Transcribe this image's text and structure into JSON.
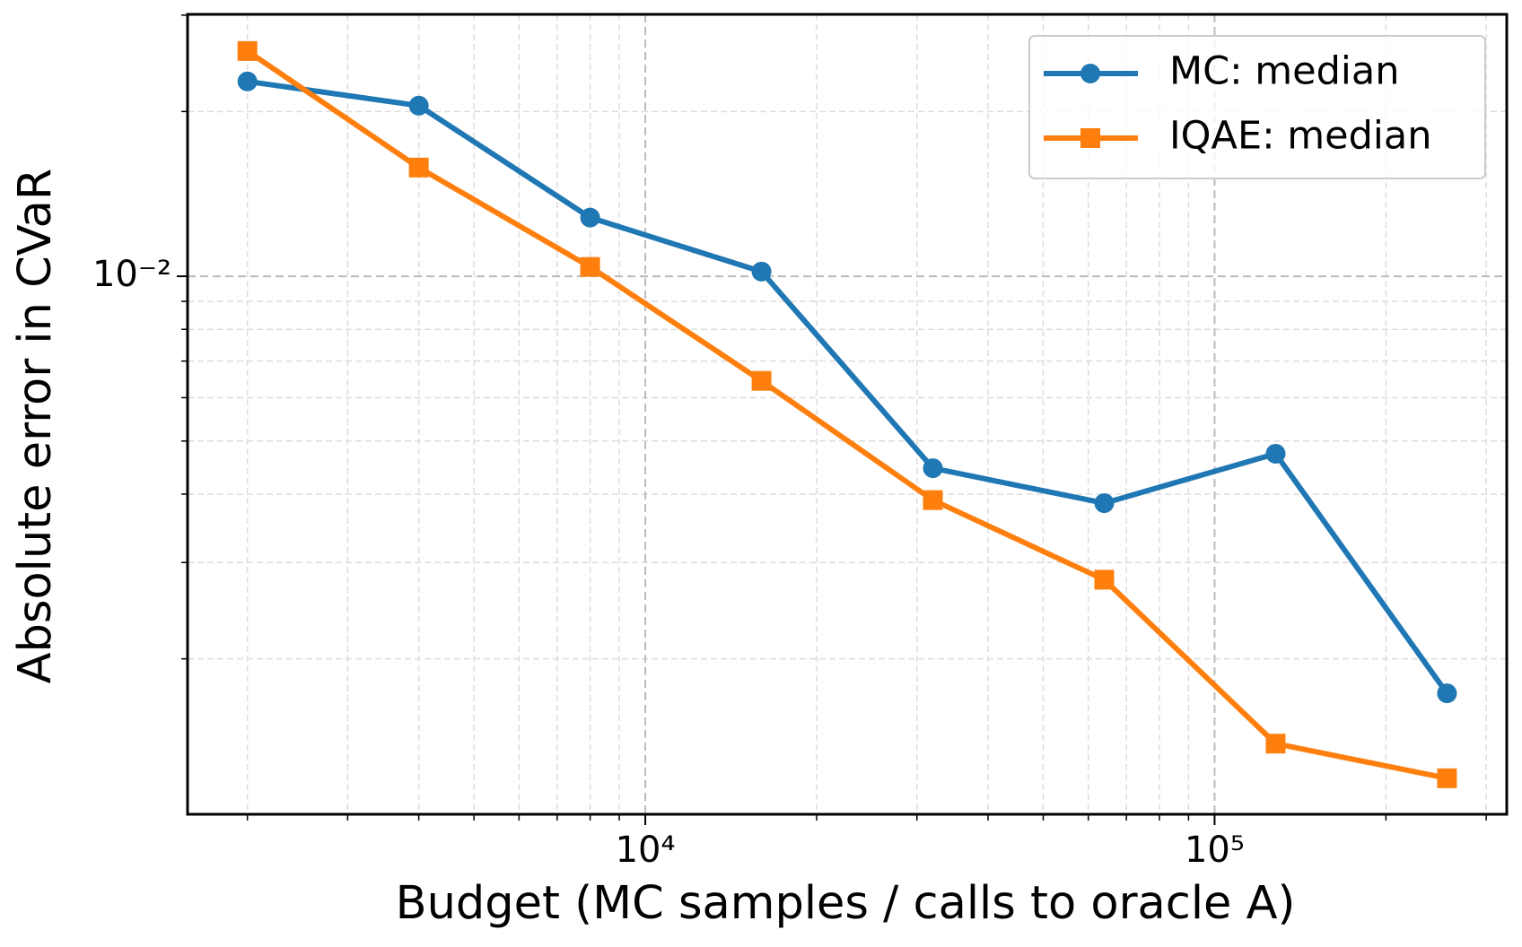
{
  "chart_data": {
    "type": "line",
    "x_label": "Budget (MC samples / calls to oracle A)",
    "y_label": "Absolute error in CVaR",
    "x": [
      2000,
      4000,
      8000,
      16000,
      32000,
      64000,
      128000,
      256000
    ],
    "series": [
      {
        "name": "MC: median",
        "color": "#1f77b4",
        "marker": "circle",
        "values": [
          0.0227,
          0.0205,
          0.0128,
          0.0102,
          0.00446,
          0.00385,
          0.00474,
          0.00173
        ]
      },
      {
        "name": "IQAE: median",
        "color": "#ff7f0e",
        "marker": "square",
        "values": [
          0.0258,
          0.0158,
          0.0104,
          0.00644,
          0.0039,
          0.00279,
          0.0014,
          0.00121
        ]
      }
    ],
    "xlog": true,
    "ylog": true,
    "xlim": [
      1570,
      326000
    ],
    "ylim": [
      0.00104,
      0.0301
    ],
    "xticks": [
      {
        "value": 10000,
        "label": "10⁴"
      },
      {
        "value": 100000,
        "label": "10⁵"
      }
    ],
    "yticks": [
      {
        "value": 0.01,
        "label": "10⁻²"
      }
    ],
    "xticks_minor": [
      2000,
      3000,
      4000,
      5000,
      6000,
      7000,
      8000,
      9000,
      20000,
      30000,
      40000,
      50000,
      60000,
      70000,
      80000,
      90000,
      200000,
      300000
    ],
    "yticks_minor": [
      0.002,
      0.003,
      0.004,
      0.005,
      0.006,
      0.007,
      0.008,
      0.009,
      0.02,
      0.03
    ],
    "grid": true,
    "legend": "upper right"
  }
}
